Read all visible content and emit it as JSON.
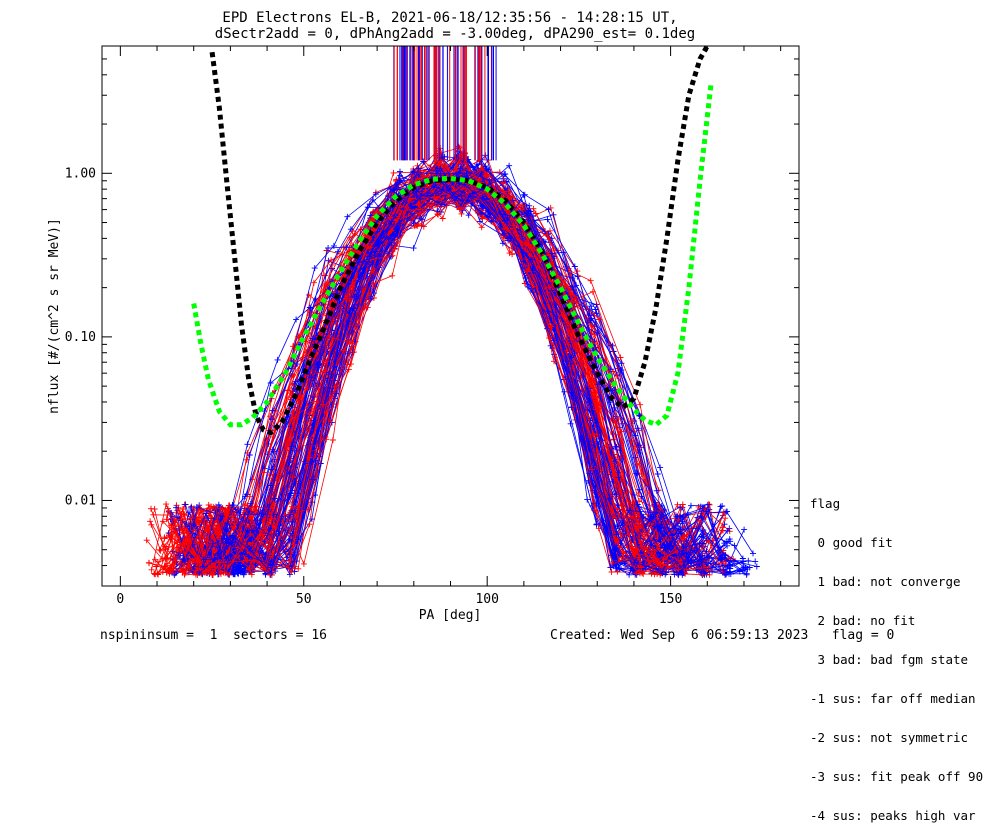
{
  "chart_data": {
    "type": "line",
    "title": "EPD Electrons EL-B, 2021-06-18/12:35:56 - 14:28:15 UT,",
    "subtitle": "dSectr2add = 0, dPhAng2add = -3.00deg, dPA290_est=   0.1deg",
    "xlabel": "PA [deg]",
    "ylabel": "nflux [#/(cm^2 s sr MeV)]",
    "xlim": [
      -5,
      185
    ],
    "ylim": [
      0.003,
      6
    ],
    "yscale": "log",
    "x_ticks": [
      0,
      50,
      100,
      150
    ],
    "y_ticks": [
      {
        "value": 0.01,
        "label": "0.01"
      },
      {
        "value": 0.1,
        "label": "0.10"
      },
      {
        "value": 1.0,
        "label": "1.00"
      }
    ],
    "grid": false,
    "colors": {
      "red_traces": "#ff0000",
      "blue_traces": "#0000ff",
      "fit_black": "#000000",
      "fit_green": "#00ff00"
    },
    "series": [
      {
        "style": "dotted-thick",
        "color": "#000000",
        "x": [
          25,
          27,
          29,
          31,
          33,
          35,
          37,
          39,
          41,
          44,
          48,
          52,
          56,
          60,
          65,
          70,
          75,
          80,
          85,
          90,
          95,
          100,
          105,
          110,
          115,
          120,
          125,
          130,
          134,
          137,
          140,
          143,
          146,
          149,
          152,
          155,
          158,
          160
        ],
        "y": [
          5.5,
          2.5,
          0.9,
          0.33,
          0.12,
          0.055,
          0.033,
          0.027,
          0.026,
          0.03,
          0.045,
          0.075,
          0.12,
          0.2,
          0.33,
          0.5,
          0.68,
          0.82,
          0.9,
          0.92,
          0.9,
          0.82,
          0.68,
          0.5,
          0.33,
          0.18,
          0.1,
          0.06,
          0.042,
          0.037,
          0.042,
          0.07,
          0.15,
          0.4,
          1.2,
          3.0,
          5.0,
          6.0
        ]
      },
      {
        "style": "dotted-thick",
        "color": "#00ff00",
        "x": [
          20,
          22,
          24,
          27,
          30,
          33,
          36,
          40,
          45,
          50,
          55,
          60,
          65,
          70,
          75,
          80,
          85,
          90,
          95,
          100,
          105,
          110,
          115,
          120,
          125,
          130,
          135,
          140,
          143,
          146,
          149,
          152,
          155,
          158,
          161
        ],
        "y": [
          0.16,
          0.09,
          0.055,
          0.035,
          0.029,
          0.029,
          0.032,
          0.04,
          0.06,
          0.1,
          0.16,
          0.25,
          0.38,
          0.55,
          0.72,
          0.85,
          0.92,
          0.93,
          0.9,
          0.8,
          0.65,
          0.48,
          0.32,
          0.2,
          0.12,
          0.075,
          0.05,
          0.036,
          0.031,
          0.029,
          0.033,
          0.06,
          0.2,
          0.9,
          3.5
        ]
      }
    ]
  },
  "legend": {
    "title": "flag",
    "items": [
      " 0 good fit",
      " 1 bad: not converge",
      " 2 bad: no fit",
      " 3 bad: bad fgm state",
      "-1 sus: far off median",
      "-2 sus: not symmetric",
      "-3 sus: fit peak off 90",
      "-4 sus: peaks high var"
    ]
  },
  "footer": {
    "left": "nspininsum =  1  sectors = 16",
    "right": "Created: Wed Sep  6 06:59:13 2023   flag = 0"
  }
}
